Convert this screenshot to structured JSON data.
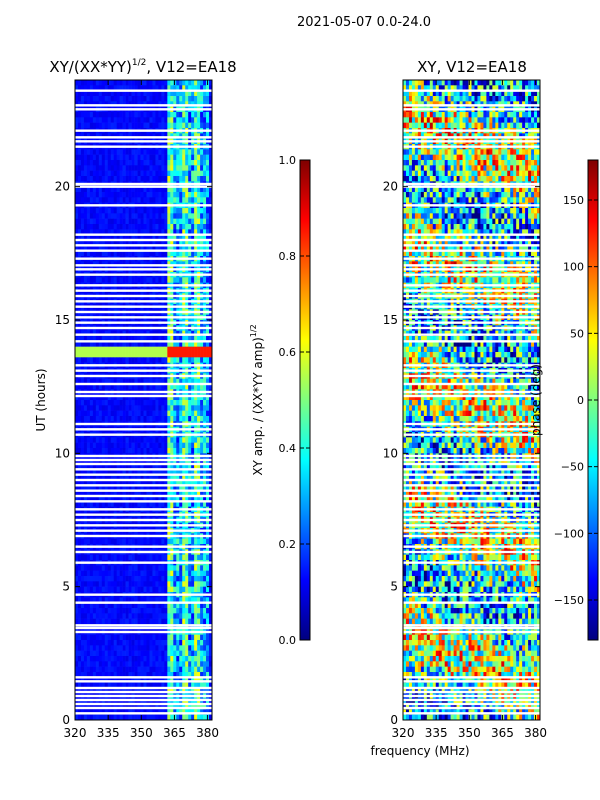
{
  "page": {
    "suptitle": "2021-05-07 0.0-24.0",
    "xlabel_shared": "frequency (MHz)"
  },
  "colors": {
    "jet": [
      "#00007f",
      "#0000ff",
      "#007fff",
      "#00ffff",
      "#7fff7f",
      "#ffff00",
      "#ff7f00",
      "#ff0000",
      "#7f0000"
    ],
    "background": "#ffffff"
  },
  "chart_data": [
    {
      "type": "heatmap",
      "title_main": "XY/(XX*YY)",
      "title_sup": "1/2",
      "title_tail": ", V12=EA18",
      "xlabel": "",
      "ylabel": "UT (hours)",
      "xlim": [
        320,
        382
      ],
      "ylim": [
        0,
        24
      ],
      "xticks": [
        320,
        335,
        350,
        365,
        380
      ],
      "yticks": [
        0,
        5,
        10,
        15,
        20
      ],
      "quantity": "XY amplitude normalized",
      "colorbar": {
        "label_main": "XY amp. / (XX*YY amp)",
        "label_sup": "1/2",
        "range": [
          0.0,
          1.0
        ],
        "ticks": [
          "0.0",
          "0.2",
          "0.4",
          "0.6",
          "0.8",
          "1.0"
        ],
        "tick_values": [
          0.0,
          0.2,
          0.4,
          0.6,
          0.8,
          1.0
        ]
      },
      "features": {
        "band_freq": [
          362,
          381
        ],
        "band_value": 0.45,
        "background_value": 0.1,
        "bright_hours": [
          13.6,
          13.9
        ],
        "bright_value": 0.85
      }
    },
    {
      "type": "heatmap",
      "title_main": "XY, V12=EA18",
      "xlabel": "frequency (MHz)",
      "ylabel": "",
      "xlim": [
        320,
        382
      ],
      "ylim": [
        0,
        24
      ],
      "xticks": [
        320,
        335,
        350,
        365,
        380
      ],
      "yticks": [
        0,
        5,
        10,
        15,
        20
      ],
      "quantity": "XY phase",
      "colorbar": {
        "label_main": "phase (deg)",
        "label_sup": "",
        "range": [
          -180,
          180
        ],
        "ticks": [
          "−150",
          "−100",
          "−50",
          "0",
          "50",
          "100",
          "150"
        ],
        "tick_values": [
          -150,
          -100,
          -50,
          0,
          50,
          100,
          150
        ]
      },
      "features": {
        "mean_value": -20,
        "spread": 120
      }
    }
  ],
  "flagged_hours": [
    0.25,
    0.45,
    0.6,
    0.75,
    0.9,
    1.05,
    1.2,
    1.45,
    1.6,
    3.3,
    3.45,
    3.55,
    4.4,
    4.7,
    5.9,
    6.3,
    6.5,
    6.9,
    7.1,
    7.3,
    7.5,
    7.7,
    7.9,
    8.2,
    8.4,
    8.6,
    8.8,
    9.0,
    9.2,
    9.4,
    9.6,
    9.75,
    9.9,
    10.7,
    10.9,
    11.1,
    12.15,
    12.3,
    12.6,
    12.9,
    13.1,
    13.3,
    14.2,
    14.45,
    14.7,
    14.9,
    15.1,
    15.3,
    15.5,
    15.7,
    15.9,
    16.1,
    16.3,
    16.7,
    16.9,
    17.05,
    17.3,
    17.6,
    17.8,
    18.0,
    18.2,
    19.3,
    20.0,
    20.1,
    21.5,
    21.7,
    21.85,
    22.1,
    22.9,
    23.05,
    23.6
  ]
}
